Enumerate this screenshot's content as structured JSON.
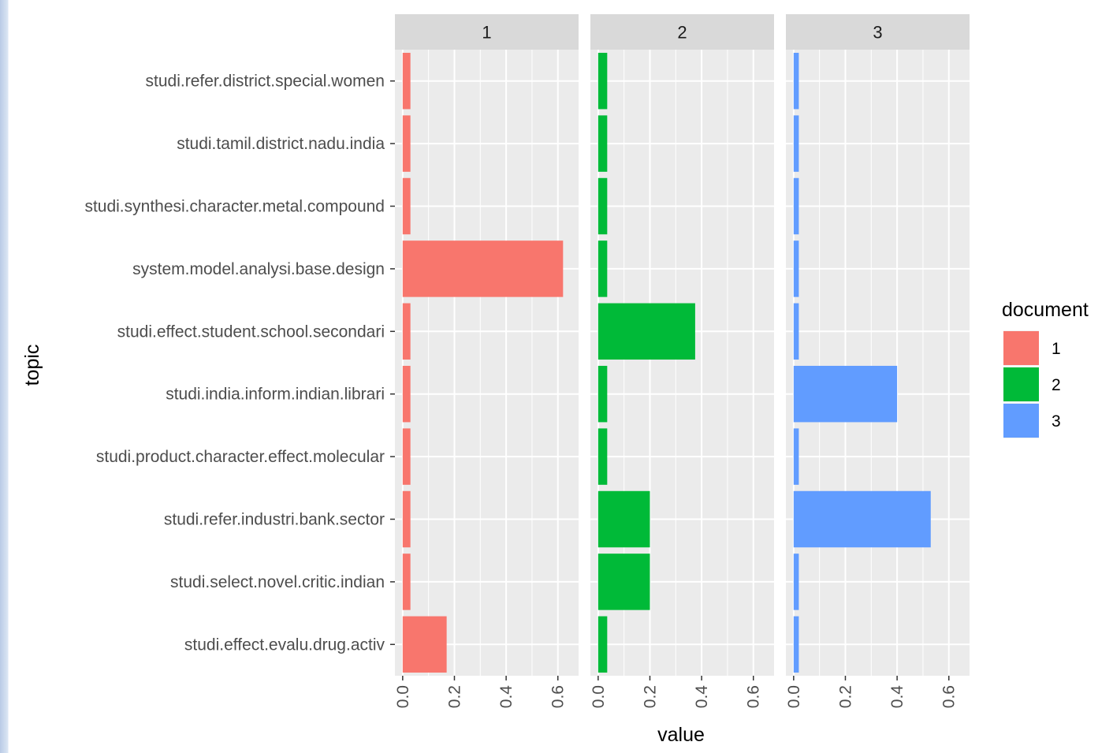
{
  "chart_data": {
    "type": "bar",
    "orientation": "horizontal",
    "facet_by": "document",
    "facets": [
      "1",
      "2",
      "3"
    ],
    "categories": [
      "studi.refer.district.special.women",
      "studi.tamil.district.nadu.india",
      "studi.synthesi.character.metal.compound",
      "system.model.analysi.base.design",
      "studi.effect.student.school.secondari",
      "studi.india.inform.indian.librari",
      "studi.product.character.effect.molecular",
      "studi.refer.industri.bank.sector",
      "studi.select.novel.critic.indian",
      "studi.effect.evalu.drug.activ"
    ],
    "series": [
      {
        "name": "1",
        "color": "#F8766D",
        "values": [
          0.03,
          0.03,
          0.03,
          0.62,
          0.03,
          0.03,
          0.03,
          0.03,
          0.03,
          0.17
        ]
      },
      {
        "name": "2",
        "color": "#00BA38",
        "values": [
          0.035,
          0.035,
          0.035,
          0.035,
          0.375,
          0.035,
          0.035,
          0.2,
          0.2,
          0.035
        ]
      },
      {
        "name": "3",
        "color": "#619CFF",
        "values": [
          0.02,
          0.02,
          0.02,
          0.02,
          0.02,
          0.4,
          0.02,
          0.53,
          0.02,
          0.02
        ]
      }
    ],
    "xlim": [
      -0.03,
      0.68
    ],
    "x_ticks": [
      0.0,
      0.2,
      0.4,
      0.6
    ],
    "x_tick_labels": [
      "0.0",
      "0.2",
      "0.4",
      "0.6"
    ],
    "xlabel": "value",
    "ylabel": "topic",
    "legend": {
      "title": "document",
      "position": "right",
      "items": [
        "1",
        "2",
        "3"
      ]
    },
    "grid": true,
    "panel_background": "#EBEBEB",
    "strip_background": "#D9D9D9"
  }
}
